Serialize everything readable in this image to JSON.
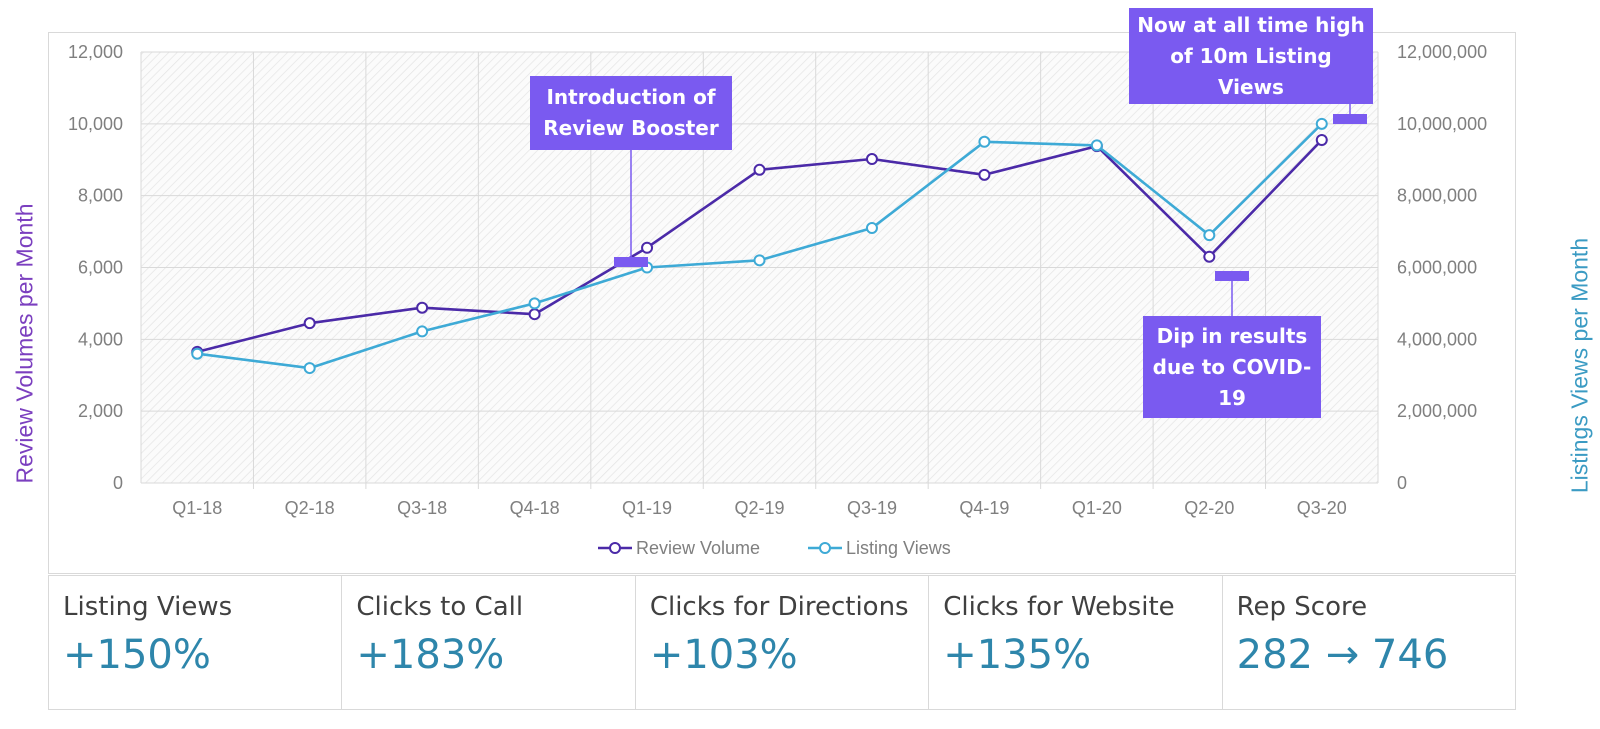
{
  "colors": {
    "review": "#4b2aa8",
    "listing": "#3eaad6",
    "callout_bg": "#7a5af0",
    "kpi_value": "#2e86ab",
    "left_title": "#7b3fbf",
    "right_title": "#3b9bc3",
    "axis_text": "#7f7f7f"
  },
  "chart_data": {
    "type": "line",
    "categories": [
      "Q1-18",
      "Q2-18",
      "Q3-18",
      "Q4-18",
      "Q1-19",
      "Q2-19",
      "Q3-19",
      "Q4-19",
      "Q1-20",
      "Q2-20",
      "Q3-20"
    ],
    "series": [
      {
        "name": "Review Volume",
        "axis": "left",
        "values": [
          3650,
          4450,
          4880,
          4700,
          6550,
          8720,
          9020,
          8580,
          9380,
          6300,
          9550
        ]
      },
      {
        "name": "Listing Views",
        "axis": "right",
        "values": [
          3600000,
          3200000,
          4220000,
          5000000,
          6000000,
          6200000,
          7100000,
          9500000,
          9400000,
          6900000,
          10000000
        ]
      }
    ],
    "y_left": {
      "label": "Review Volumes per Month",
      "range": [
        0,
        12000
      ],
      "ticks": [
        "0",
        "2,000",
        "4,000",
        "6,000",
        "8,000",
        "10,000",
        "12,000"
      ]
    },
    "y_right": {
      "label": "Listings Views per Month",
      "range": [
        0,
        12000000
      ],
      "ticks": [
        "0",
        "2,000,000",
        "4,000,000",
        "6,000,000",
        "8,000,000",
        "10,000,000",
        "12,000,000"
      ]
    },
    "legend_position": "bottom",
    "grid": true,
    "annotations": [
      {
        "text": "Introduction of Review Booster",
        "category": "Q1-19"
      },
      {
        "text": "Now at all time high of 10m Listing Views",
        "category": "Q3-20"
      },
      {
        "text": "Dip in results due to COVID-19",
        "category": "Q2-20"
      }
    ]
  },
  "annotations": {
    "booster": "Introduction of Review Booster",
    "high": "Now at all time high of 10m Listing Views",
    "covid": "Dip in results due to COVID-19"
  },
  "kpis": [
    {
      "label": "Listing Views",
      "value": "+150%"
    },
    {
      "label": "Clicks to Call",
      "value": "+183%"
    },
    {
      "label": "Clicks for Directions",
      "value": "+103%"
    },
    {
      "label": "Clicks for Website",
      "value": "+135%"
    },
    {
      "label": "Rep Score",
      "value": "282 → 746"
    }
  ]
}
